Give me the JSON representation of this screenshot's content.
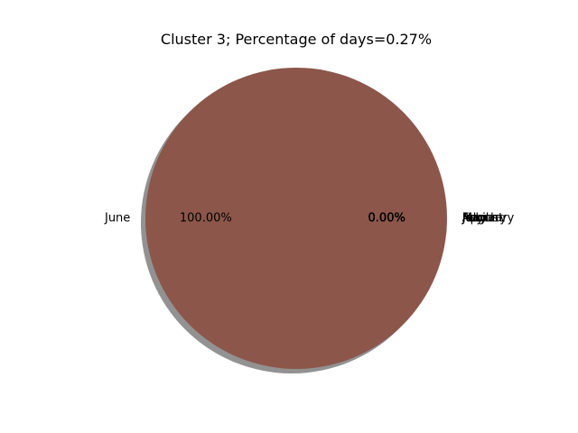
{
  "chart_data": {
    "type": "pie",
    "title": "Cluster 3; Percentage of days=0.27%",
    "shadow": true,
    "labels": [
      "January",
      "February",
      "March",
      "April",
      "May",
      "June",
      "July",
      "August"
    ],
    "values": [
      0,
      0,
      0,
      0,
      0,
      100,
      0,
      0
    ],
    "percent_labels": [
      "0.00%",
      "0.00%",
      "0.00%",
      "0.00%",
      "0.00%",
      "100.00%",
      "0.00%",
      "0.00%"
    ],
    "colors": [
      "#1f77b4",
      "#ff7f0e",
      "#2ca02c",
      "#d62728",
      "#9467bd",
      "#8c564b",
      "#e377c2",
      "#7f7f7f"
    ]
  }
}
